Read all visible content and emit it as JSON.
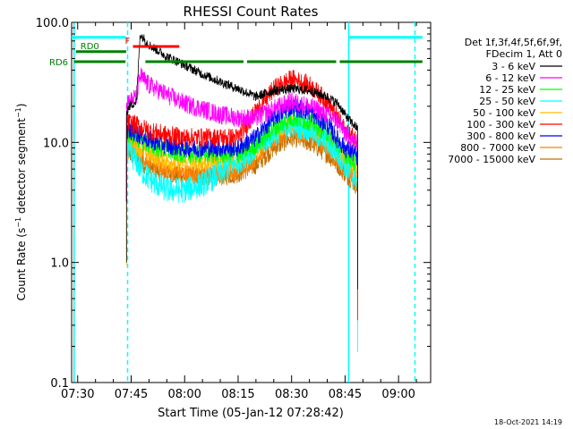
{
  "chart_data": {
    "type": "line",
    "title": "RHESSI Count Rates",
    "xlabel": "Start Time (05-Jan-12 07:28:42)",
    "ylabel": "Count Rate (s⁻¹ detector segment⁻¹)",
    "ylabel_parts": {
      "base": "Count Rate (s",
      "exp1": "−1",
      "mid": " detector segment",
      "exp2": "−1",
      "end": ")"
    },
    "xlim_minutes": [
      -1.7,
      99.0
    ],
    "ylim": [
      0.1,
      100
    ],
    "yscale": "log",
    "x_ticks": [
      {
        "label": "07:30",
        "minutes": 0
      },
      {
        "label": "07:45",
        "minutes": 15
      },
      {
        "label": "08:00",
        "minutes": 30
      },
      {
        "label": "08:15",
        "minutes": 45
      },
      {
        "label": "08:30",
        "minutes": 60
      },
      {
        "label": "08:45",
        "minutes": 75
      },
      {
        "label": "09:00",
        "minutes": 90
      }
    ],
    "y_ticks": [
      {
        "label": "0.1",
        "value": 0.1
      },
      {
        "label": "1.0",
        "value": 1.0
      },
      {
        "label": "10.0",
        "value": 10.0
      },
      {
        "label": "100.0",
        "value": 100.0
      }
    ],
    "legend_header": [
      "Det 1f,3f,4f,5f,6f,9f,",
      "FDecim 1, Att 0"
    ],
    "series": [
      {
        "name": "3 - 6 keV",
        "color": "#000000",
        "x": [
          13.7,
          14.5,
          16.5,
          17.5,
          20,
          25,
          30,
          35,
          40,
          45,
          50,
          55,
          60,
          65,
          70,
          73,
          75,
          76.5,
          77.5,
          78.5
        ],
        "values": [
          18,
          20,
          22,
          80,
          65,
          52,
          44,
          37,
          32,
          28,
          24,
          27,
          28,
          27,
          24,
          21,
          17,
          15,
          14,
          13
        ]
      },
      {
        "name": "6 - 12 keV",
        "color": "#ff00ff",
        "x": [
          13.7,
          14.5,
          16.5,
          17.5,
          20,
          25,
          30,
          35,
          40,
          45,
          50,
          55,
          60,
          65,
          70,
          73,
          75,
          76.5,
          77.5,
          78.5
        ],
        "values": [
          22,
          22,
          24,
          36,
          30,
          25,
          21,
          19,
          17,
          16,
          16,
          19,
          22,
          20,
          17,
          15,
          12,
          11,
          10,
          9.5
        ]
      },
      {
        "name": "12 - 25 keV",
        "color": "#00ff00",
        "x": [
          13.7,
          14.5,
          16.5,
          17.5,
          20,
          25,
          30,
          35,
          40,
          45,
          50,
          55,
          60,
          65,
          70,
          73,
          75,
          76.5,
          77.5,
          78.5
        ],
        "values": [
          12,
          11.5,
          11,
          10.5,
          9.5,
          8.5,
          8,
          8,
          8,
          8,
          9.5,
          13,
          16,
          15,
          12,
          9.5,
          8,
          7.5,
          6.8,
          6.5
        ]
      },
      {
        "name": "25 - 50 keV",
        "color": "#00ffff",
        "x": [
          13.7,
          14.5,
          16.5,
          17.5,
          20,
          25,
          30,
          35,
          40,
          45,
          50,
          55,
          60,
          65,
          70,
          73,
          75,
          76.5,
          77.5,
          78.5
        ],
        "values": [
          8.5,
          8,
          7,
          6,
          5,
          4,
          4,
          4.5,
          5.5,
          7,
          9,
          12,
          14,
          13,
          10,
          8,
          6.5,
          5.5,
          5,
          4.8
        ]
      },
      {
        "name": "50 - 100 keV",
        "color": "#ffbf00",
        "x": [
          13.7,
          14.5,
          16.5,
          17.5,
          20,
          25,
          30,
          35,
          40,
          45,
          50,
          55,
          60,
          65,
          70,
          73,
          75,
          76.5,
          77.5,
          78.5
        ],
        "values": [
          10.5,
          10,
          9.5,
          9,
          8,
          7,
          6.8,
          6.8,
          7,
          7,
          8.5,
          12,
          14.5,
          13,
          10.5,
          8,
          7,
          6.5,
          6,
          5.6
        ]
      },
      {
        "name": "100 - 300 keV",
        "color": "#ff0000",
        "x": [
          13.7,
          14.5,
          16.5,
          17.5,
          20,
          25,
          30,
          35,
          40,
          45,
          50,
          55,
          60,
          65,
          70,
          73,
          75,
          76.5,
          77.5,
          78.5
        ],
        "values": [
          15,
          14.5,
          14,
          13.5,
          12.5,
          11.5,
          11,
          11,
          11,
          11,
          18,
          28,
          34,
          30,
          22,
          16,
          12.5,
          11.5,
          11,
          10.5
        ]
      },
      {
        "name": "300 - 800 keV",
        "color": "#0000ff",
        "x": [
          13.7,
          14.5,
          16.5,
          17.5,
          20,
          25,
          30,
          35,
          40,
          45,
          50,
          55,
          60,
          65,
          70,
          73,
          75,
          76.5,
          77.5,
          78.5
        ],
        "values": [
          13,
          12.5,
          12,
          11.5,
          10.5,
          9.5,
          9,
          9,
          9,
          9,
          11,
          16,
          20,
          18,
          14,
          10.5,
          9,
          8.5,
          8,
          7.5
        ]
      },
      {
        "name": "800 - 7000 keV",
        "color": "#ff8000",
        "x": [
          13.7,
          14.5,
          16.5,
          17.5,
          20,
          25,
          30,
          35,
          40,
          45,
          50,
          55,
          60,
          65,
          70,
          73,
          75,
          76.5,
          77.5,
          78.5
        ],
        "values": [
          9.5,
          9,
          8.5,
          8,
          7,
          6,
          5.5,
          5.5,
          5.5,
          5.8,
          7.5,
          10.5,
          12.5,
          11.5,
          9,
          7,
          6,
          5.5,
          5.2,
          5
        ]
      },
      {
        "name": "7000 - 15000 keV",
        "color": "#c07000",
        "x": [
          13.7,
          14.5,
          16.5,
          17.5,
          20,
          25,
          30,
          35,
          40,
          45,
          50,
          55,
          60,
          65,
          70,
          73,
          75,
          76.5,
          77.5,
          78.5
        ],
        "values": [
          8.5,
          8,
          7.5,
          7,
          6.2,
          5.5,
          5.2,
          5.2,
          5.2,
          5.5,
          6.5,
          9,
          11,
          10,
          8,
          6.5,
          5.5,
          5,
          4.6,
          4.3
        ]
      }
    ],
    "state_bars": [
      {
        "label": "",
        "color": "#00ffff",
        "segments": [
          [
            -1.7,
            13.5
          ],
          [
            76.0,
            96.7
          ]
        ],
        "level": 75
      },
      {
        "label": "RD0",
        "color": "#008000",
        "segments": [
          [
            -0.5,
            13.6
          ]
        ],
        "level": 57
      },
      {
        "label": "RD6",
        "color": "#008000",
        "segments": [
          [
            -1.0,
            13.4
          ],
          [
            19.0,
            46.5
          ],
          [
            47.5,
            72.5
          ],
          [
            73.5,
            96.7
          ]
        ],
        "level": 47
      },
      {
        "label": "F",
        "color": "#ff0000",
        "segments": [
          [
            15.5,
            28.5
          ]
        ],
        "level": 63
      }
    ],
    "vlines": [
      {
        "minutes": -1.0,
        "color": "#00ffff",
        "style": "solid"
      },
      {
        "minutes": 14.0,
        "color": "#00ffff",
        "style": "dashed"
      },
      {
        "minutes": 76.0,
        "color": "#00ffff",
        "style": "solid"
      },
      {
        "minutes": 94.6,
        "color": "#00ffff",
        "style": "dashed"
      }
    ]
  },
  "footer_timestamp": "18-Oct-2021 14:19"
}
